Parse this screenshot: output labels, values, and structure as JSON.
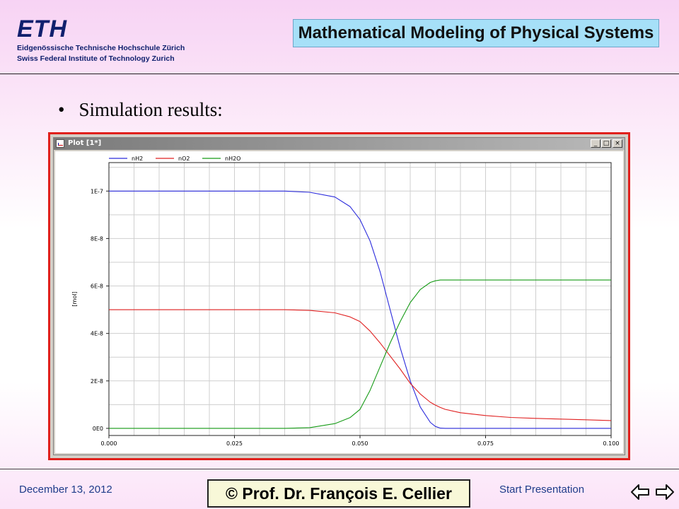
{
  "header": {
    "logo_text": "ETH",
    "institute_line1": "Eidgenössische Technische Hochschule Zürich",
    "institute_line2": "Swiss Federal Institute of Technology Zurich",
    "course_title": "Mathematical Modeling of Physical Systems"
  },
  "slide": {
    "bullet_text": "Simulation results:"
  },
  "plot_window": {
    "title": "Plot [1*]",
    "buttons": {
      "minimize": "_",
      "maximize": "□",
      "close": "×"
    }
  },
  "chart_data": {
    "type": "line",
    "title": "",
    "xlabel": "",
    "ylabel": "[mol]",
    "xlim": [
      0.0,
      0.1
    ],
    "ylim": [
      -3e-09,
      1.12e-07
    ],
    "x_ticks": [
      "0.000",
      "0.025",
      "0.050",
      "0.075",
      "0.100"
    ],
    "y_ticks": [
      "0E0",
      "2E-8",
      "4E-8",
      "6E-8",
      "8E-8",
      "1E-7"
    ],
    "legend_position": "top-left",
    "grid": true,
    "colors": {
      "nH2": "#2a2adc",
      "nO2": "#e02020",
      "nH2O": "#169b16"
    },
    "x": [
      0.0,
      0.035,
      0.04,
      0.045,
      0.048,
      0.05,
      0.052,
      0.054,
      0.056,
      0.058,
      0.06,
      0.062,
      0.064,
      0.065,
      0.066,
      0.067,
      0.07,
      0.075,
      0.08,
      0.085,
      0.09,
      0.095,
      0.1
    ],
    "series": [
      {
        "name": "nH2",
        "values": [
          1e-07,
          1e-07,
          9.95e-08,
          9.75e-08,
          9.35e-08,
          8.8e-08,
          7.9e-08,
          6.6e-08,
          5e-08,
          3.4e-08,
          2e-08,
          9e-09,
          2.5e-09,
          8e-10,
          1e-10,
          0.0,
          0.0,
          0.0,
          0.0,
          0.0,
          0.0,
          0.0,
          0.0
        ]
      },
      {
        "name": "nO2",
        "values": [
          5e-08,
          5e-08,
          4.97e-08,
          4.87e-08,
          4.7e-08,
          4.5e-08,
          4.1e-08,
          3.6e-08,
          3.05e-08,
          2.5e-08,
          1.9e-08,
          1.45e-08,
          1.1e-08,
          9.8e-09,
          8.8e-09,
          8e-09,
          6.6e-09,
          5.4e-09,
          4.6e-09,
          4.2e-09,
          3.9e-09,
          3.6e-09,
          3.3e-09
        ]
      },
      {
        "name": "nH2O",
        "values": [
          0.0,
          0.0,
          3e-10,
          2e-09,
          4.5e-09,
          8e-09,
          1.6e-08,
          2.6e-08,
          3.6e-08,
          4.5e-08,
          5.3e-08,
          5.85e-08,
          6.15e-08,
          6.22e-08,
          6.25e-08,
          6.25e-08,
          6.25e-08,
          6.25e-08,
          6.25e-08,
          6.25e-08,
          6.25e-08,
          6.25e-08,
          6.25e-08
        ]
      }
    ]
  },
  "footer": {
    "date": "December 13, 2012",
    "start_link": "Start Presentation",
    "author": "© Prof. Dr. François E. Cellier"
  }
}
